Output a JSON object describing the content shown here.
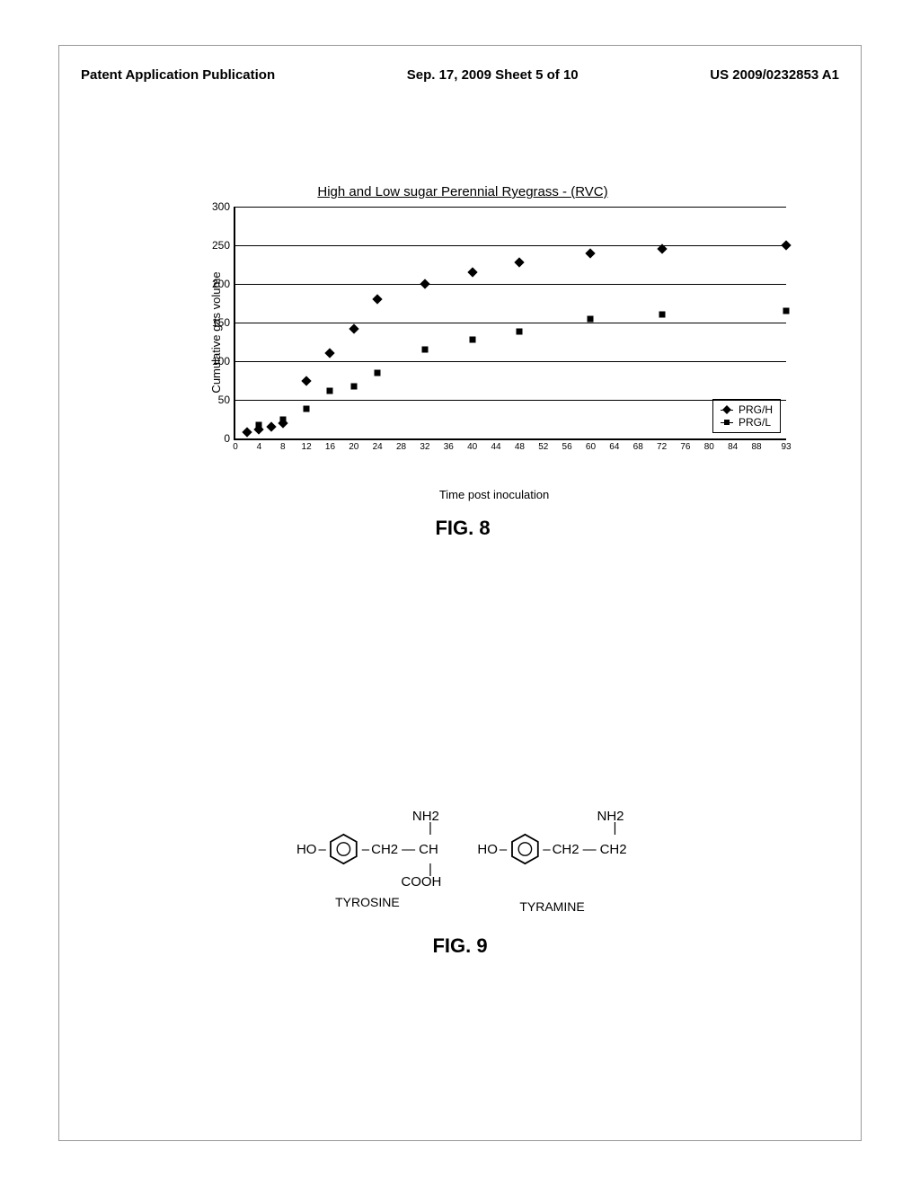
{
  "header": {
    "left": "Patent Application Publication",
    "center": "Sep. 17, 2009  Sheet 5 of 10",
    "right": "US 2009/0232853 A1"
  },
  "fig8": {
    "title": "High and Low sugar Perennial Ryegrass - (RVC)",
    "y_label": "Cumulative gas volume",
    "x_label": "Time post inoculation",
    "caption": "FIG. 8",
    "ylim": [
      0,
      300
    ],
    "ytick_step": 50,
    "x_ticks": [
      "0",
      "4",
      "8",
      "12",
      "16",
      "20",
      "24",
      "28",
      "32",
      "36",
      "40",
      "44",
      "48",
      "52",
      "56",
      "60",
      "64",
      "68",
      "72",
      "76",
      "80",
      "84",
      "88",
      "93"
    ],
    "gridlines_y": [
      50,
      100,
      150,
      200,
      250,
      300
    ],
    "series": [
      {
        "name": "PRG/H",
        "marker": "diamond",
        "points": [
          [
            2,
            8
          ],
          [
            4,
            12
          ],
          [
            6,
            15
          ],
          [
            8,
            20
          ],
          [
            12,
            75
          ],
          [
            16,
            110
          ],
          [
            20,
            142
          ],
          [
            24,
            180
          ],
          [
            32,
            200
          ],
          [
            40,
            215
          ],
          [
            48,
            228
          ],
          [
            60,
            240
          ],
          [
            72,
            245
          ],
          [
            93,
            250
          ]
        ]
      },
      {
        "name": "PRG/L",
        "marker": "square",
        "points": [
          [
            4,
            18
          ],
          [
            8,
            25
          ],
          [
            12,
            38
          ],
          [
            16,
            62
          ],
          [
            20,
            68
          ],
          [
            24,
            85
          ],
          [
            32,
            115
          ],
          [
            40,
            128
          ],
          [
            48,
            138
          ],
          [
            60,
            155
          ],
          [
            72,
            160
          ],
          [
            93,
            165
          ]
        ]
      }
    ],
    "legend": [
      "PRG/H",
      "PRG/L"
    ],
    "colors": {
      "point": "#000000",
      "grid": "#000000",
      "axis": "#000000",
      "bg": "#ffffff"
    }
  },
  "fig9": {
    "molecules": [
      {
        "name": "TYROSINE",
        "left": "HO",
        "chain_top": "NH2",
        "chain_mid1": "CH2",
        "chain_mid2": "CH",
        "chain_bot": "COOH"
      },
      {
        "name": "TYRAMINE",
        "left": "HO",
        "chain_top": "NH2",
        "chain_mid1": "CH2",
        "chain_mid2": "CH2",
        "chain_bot": ""
      }
    ],
    "caption": "FIG. 9"
  }
}
